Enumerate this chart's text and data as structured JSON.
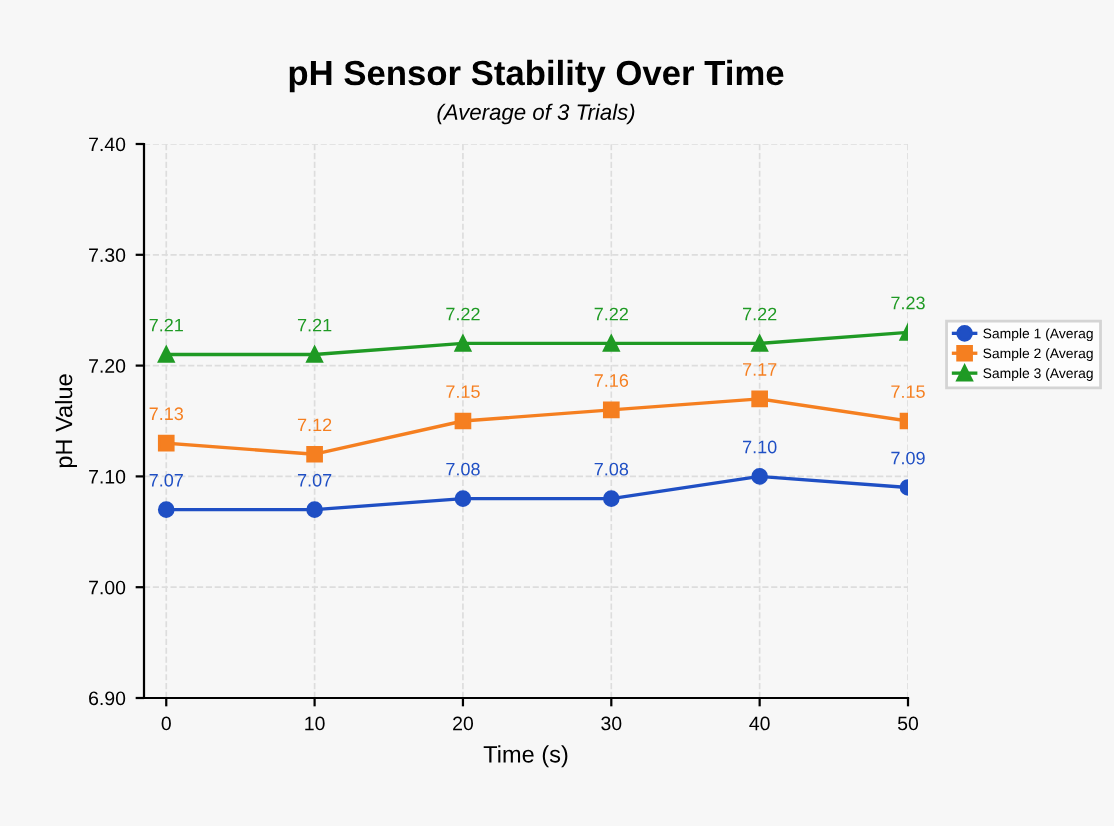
{
  "chart_data": {
    "type": "line",
    "title": "pH Sensor Stability Over Time",
    "subtitle": "(Average of 3 Trials)",
    "xlabel": "Time (s)",
    "ylabel": "pH Value",
    "x": [
      0,
      10,
      20,
      30,
      40,
      50
    ],
    "series": [
      {
        "name": "Sample 1 (Averag",
        "color": "#1f4fc4",
        "marker": "circle",
        "values": [
          7.07,
          7.07,
          7.08,
          7.08,
          7.1,
          7.09
        ],
        "value_labels": [
          "7.07",
          "7.07",
          "7.08",
          "7.08",
          "7.10",
          "7.09"
        ]
      },
      {
        "name": "Sample 2 (Averag",
        "color": "#f57f20",
        "marker": "square",
        "values": [
          7.13,
          7.12,
          7.15,
          7.16,
          7.17,
          7.15
        ],
        "value_labels": [
          "7.13",
          "7.12",
          "7.15",
          "7.16",
          "7.17",
          "7.15"
        ]
      },
      {
        "name": "Sample 3 (Averag",
        "color": "#1f9a24",
        "marker": "triangle",
        "values": [
          7.21,
          7.21,
          7.22,
          7.22,
          7.22,
          7.23
        ],
        "value_labels": [
          "7.21",
          "7.21",
          "7.22",
          "7.22",
          "7.22",
          "7.23"
        ]
      }
    ],
    "xlim": [
      -1.5,
      50
    ],
    "xticks": [
      0,
      10,
      20,
      30,
      40,
      50
    ],
    "ylim": [
      6.9,
      7.4
    ],
    "yticks": [
      {
        "value": 6.9,
        "label": "6.90"
      },
      {
        "value": 7.0,
        "label": "7.00"
      },
      {
        "value": 7.1,
        "label": "7.10"
      },
      {
        "value": 7.2,
        "label": "7.20"
      },
      {
        "value": 7.3,
        "label": "7.30"
      },
      {
        "value": 7.4,
        "label": "7.40"
      }
    ],
    "grid": true,
    "legend": "right",
    "line_style": "solid"
  }
}
